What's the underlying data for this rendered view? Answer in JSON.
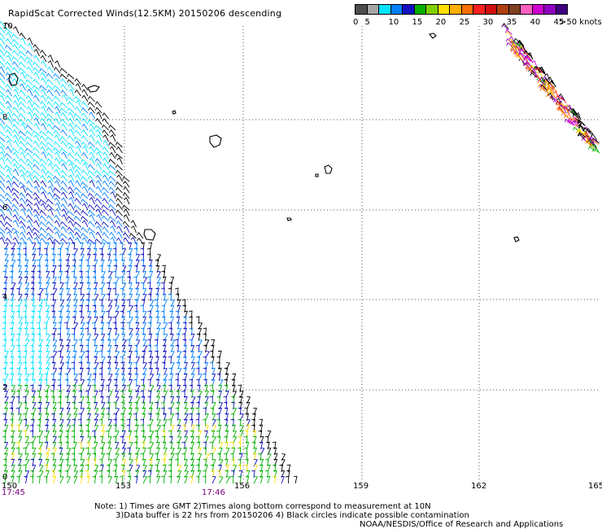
{
  "title": "RapidScat Corrected Winds(12.5KM) 20150206 descending",
  "legend": {
    "unit_label": ">50 knots",
    "bins": [
      {
        "label": "0",
        "color": "#4d4d4d"
      },
      {
        "label": "5",
        "color": "#a6a6a6"
      },
      {
        "label": "",
        "color": "#00e5ff"
      },
      {
        "label": "10",
        "color": "#0080ff"
      },
      {
        "label": "",
        "color": "#1010c0"
      },
      {
        "label": "15",
        "color": "#00b000"
      },
      {
        "label": "",
        "color": "#80d000"
      },
      {
        "label": "20",
        "color": "#ffe000"
      },
      {
        "label": "",
        "color": "#ffb000"
      },
      {
        "label": "25",
        "color": "#ff7000"
      },
      {
        "label": "",
        "color": "#ff2020"
      },
      {
        "label": "30",
        "color": "#d01010"
      },
      {
        "label": "",
        "color": "#b04010"
      },
      {
        "label": "35",
        "color": "#804020"
      },
      {
        "label": "",
        "color": "#ff60c0"
      },
      {
        "label": "40",
        "color": "#d000d0"
      },
      {
        "label": "",
        "color": "#9000c0"
      },
      {
        "label": "45",
        "color": "#400080"
      }
    ]
  },
  "axes": {
    "x_ticks": [
      "150",
      "153",
      "156",
      "159",
      "162",
      "165"
    ],
    "y_ticks": [
      "10",
      "8",
      "6",
      "4",
      "2",
      "0"
    ]
  },
  "times": {
    "left": "17:45",
    "mid": "17:46"
  },
  "notes": {
    "line1": "Note: 1) Times are GMT  2)Times along bottom correspond to measurement at 10N",
    "line2": "3)Data buffer is 22 hrs from 20150206  4) Black circles indicate possible contamination",
    "credit": "NOAA/NESDIS/Office of Research and Applications"
  }
}
